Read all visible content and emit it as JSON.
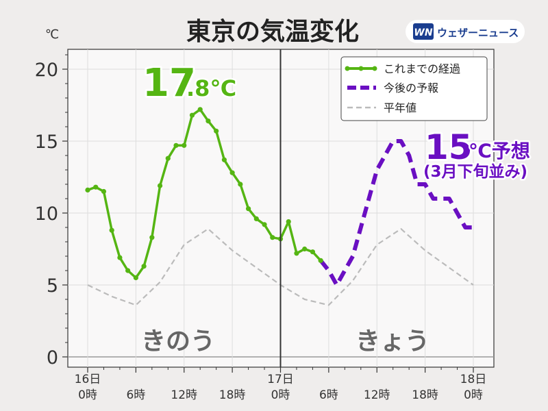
{
  "header": {
    "title": "東京の気温変化",
    "unit": "℃",
    "logo_text": "ウェザーニュース",
    "logo_mark": "WN"
  },
  "annotations": {
    "max_yesterday_int": "17",
    "max_yesterday_dec": ".8℃",
    "forecast_value": "15",
    "forecast_suffix": "℃予想",
    "forecast_note": "(3月下旬並み)",
    "yesterday_label": "きのう",
    "today_label": "きょう"
  },
  "colors": {
    "observed": "#55b513",
    "forecast": "#6a0fc2",
    "normal": "#bbbbbb",
    "plot_bg": "#f9f8f8",
    "page_bg": "#efedec"
  },
  "chart_data": {
    "type": "line",
    "title": "東京の気温変化",
    "ylabel": "℃",
    "ylim": [
      0,
      21
    ],
    "xlim": [
      0,
      48
    ],
    "grid": true,
    "legend_position": "top-right",
    "y_ticks": [
      "0",
      "5",
      "10",
      "15",
      "20"
    ],
    "x_ticks": [
      {
        "x": 0,
        "line1": "16日",
        "line2": "0時"
      },
      {
        "x": 6,
        "line1": "",
        "line2": "6時"
      },
      {
        "x": 12,
        "line1": "",
        "line2": "12時"
      },
      {
        "x": 18,
        "line1": "",
        "line2": "18時"
      },
      {
        "x": 24,
        "line1": "17日",
        "line2": "0時"
      },
      {
        "x": 30,
        "line1": "",
        "line2": "6時"
      },
      {
        "x": 36,
        "line1": "",
        "line2": "12時"
      },
      {
        "x": 42,
        "line1": "",
        "line2": "18時"
      },
      {
        "x": 48,
        "line1": "18日",
        "line2": "0時"
      }
    ],
    "divider_x": 24,
    "series": [
      {
        "name": "これまでの経過",
        "style": "solid-markers",
        "x": [
          0,
          1,
          2,
          3,
          4,
          5,
          6,
          7,
          8,
          9,
          10,
          11,
          12,
          13,
          14,
          15,
          16,
          17,
          18,
          19,
          20,
          21,
          22,
          23,
          24,
          25,
          26,
          27,
          28,
          29
        ],
        "y": [
          11.6,
          11.8,
          11.5,
          8.8,
          6.9,
          6.0,
          5.5,
          6.3,
          8.3,
          11.9,
          13.8,
          14.7,
          14.7,
          16.8,
          17.2,
          16.4,
          15.7,
          13.7,
          12.8,
          12.0,
          10.3,
          9.6,
          9.2,
          8.3,
          8.2,
          9.4,
          7.2,
          7.5,
          7.3,
          6.7
        ]
      },
      {
        "name": "今後の予報",
        "style": "dashed",
        "x": [
          29,
          30,
          31,
          32,
          33,
          34,
          35,
          36,
          37,
          38,
          39,
          40,
          41,
          42,
          43,
          44,
          45,
          46,
          47,
          48
        ],
        "y": [
          6.7,
          6.0,
          5.0,
          6.0,
          7.0,
          9.0,
          11.0,
          13.0,
          14.0,
          15.0,
          15.0,
          14.0,
          12.0,
          12.0,
          11.0,
          11.0,
          11.0,
          10.0,
          9.0,
          9.0
        ]
      },
      {
        "name": "平年値",
        "style": "dashed-thin",
        "x": [
          0,
          3,
          6,
          9,
          12,
          15,
          18,
          21,
          24,
          27,
          30,
          33,
          36,
          39,
          42,
          45,
          48
        ],
        "y": [
          5.0,
          4.2,
          3.6,
          5.2,
          7.8,
          8.9,
          7.4,
          6.2,
          5.0,
          4.0,
          3.6,
          5.3,
          7.8,
          8.9,
          7.4,
          6.2,
          5.0
        ]
      }
    ]
  }
}
